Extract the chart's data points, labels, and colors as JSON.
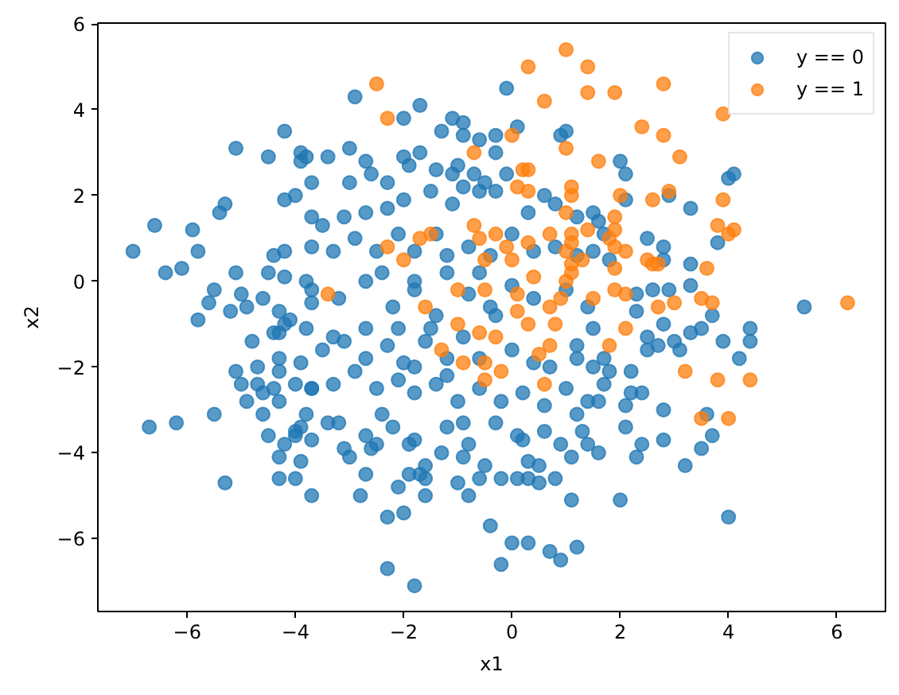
{
  "chart_data": {
    "type": "scatter",
    "xlabel": "x1",
    "ylabel": "x2",
    "xlim": [
      -7.65,
      6.9
    ],
    "ylim": [
      -7.7,
      6.02
    ],
    "xticks": [
      {
        "value": -6,
        "label": "−6"
      },
      {
        "value": -4,
        "label": "−4"
      },
      {
        "value": -2,
        "label": "−2"
      },
      0,
      2,
      4,
      6
    ],
    "yticks": [
      {
        "value": -6,
        "label": "−6"
      },
      {
        "value": -4,
        "label": "−4"
      },
      {
        "value": -2,
        "label": "−2"
      },
      0,
      2,
      4,
      6
    ],
    "grid": false,
    "legend": "top right",
    "marker": "circle",
    "series": [
      {
        "name": "y == 0",
        "color": "#1f77b4",
        "x": [
          -7.0,
          -6.6,
          -6.4,
          -6.1,
          -5.9,
          -5.8,
          -5.1,
          -5.4,
          -5.3,
          -4.5,
          -4.2,
          -3.9,
          -3.8,
          -3.9,
          -4.2,
          -4.0,
          -3.7,
          -3.7,
          -5.5,
          -5.6,
          -5.8,
          -5.1,
          -5.0,
          -5.2,
          -4.9,
          -4.4,
          -4.5,
          -4.2,
          -4.6,
          -4.2,
          -4.3,
          -4.1,
          -3.8,
          -3.7,
          -6.7,
          -6.2,
          -5.5,
          -5.3,
          -4.8,
          -5.1,
          -5.0,
          -4.7,
          -4.9,
          -4.7,
          -4.6,
          -4.6,
          -4.5,
          -4.3,
          -4.3,
          -4.0,
          -3.9,
          -4.2,
          -4.0,
          -4.0,
          -3.9,
          -3.8,
          -3.7,
          -3.7,
          -4.3,
          -4.3,
          -4.4,
          -4.3,
          -3.9,
          -4.0,
          -3.7,
          -4.4,
          -4.3,
          -4.2,
          -3.8,
          -2.3,
          -1.8,
          -2.3,
          -2.0,
          -1.6,
          -2.8,
          -2.1,
          -1.9,
          -1.7,
          -1.6,
          -1.0,
          -0.8,
          -0.5,
          -0.6,
          -0.4,
          -0.2,
          0.0,
          0.3,
          0.7,
          0.9,
          1.2,
          1.1,
          -0.2,
          0.1,
          0.3,
          0.5,
          0.8,
          0.3,
          0.5,
          0.9,
          1.4,
          1.1,
          -3.4,
          -3.1,
          -3.0,
          -2.7,
          -2.6,
          -2.5,
          -1.9,
          -1.6,
          -1.3,
          -0.9,
          -0.8,
          0.1,
          1.3,
          1.2,
          2.0,
          4.0,
          3.2,
          3.5,
          3.7,
          3.6,
          2.3,
          2.4,
          2.8,
          2.8,
          2.1,
          2.1,
          2.2,
          2.2,
          2.4,
          1.7,
          1.6,
          1.6,
          4.2,
          3.9,
          4.4,
          4.4,
          3.1,
          3.0,
          2.7,
          2.5,
          2.5,
          2.8,
          3.3,
          3.5,
          1.5,
          1.7,
          1.8,
          2.0,
          2.1,
          2.1,
          2.9,
          3.3,
          4.0,
          4.1,
          3.8,
          2.5,
          2.8,
          2.8,
          3.3,
          3.3,
          2.9,
          2.6,
          2.3,
          2.3,
          3.7,
          5.4,
          1.6,
          1.7,
          1.8,
          -2.9,
          -2.0,
          -1.7,
          -0.1,
          -1.3,
          -1.1,
          -0.9,
          -0.9,
          -2.0,
          -1.9,
          -1.7,
          -3.0,
          -3.4,
          -0.6,
          -0.3,
          -0.3,
          0.1,
          0.9,
          1.0,
          -1.4,
          -1.1,
          -1.0,
          -3.0,
          -2.7,
          -2.6,
          -2.3,
          -0.1,
          -0.3,
          -0.5,
          -0.7,
          0.3,
          0.6,
          0.8,
          1.2,
          1.5,
          -2.0,
          -2.3,
          -2.7,
          -3.1,
          -3.5,
          -1.5,
          -1.1,
          -0.9,
          -0.6,
          -3.7,
          -3.3,
          -2.9,
          -2.5,
          -2.1,
          -1.8,
          -1.4,
          -1.2,
          -0.8,
          -0.4,
          0.0,
          0.4,
          0.8,
          1.2,
          1.5,
          -3.7,
          -3.2,
          -2.7,
          -2.2,
          -1.8,
          -1.4,
          -0.8,
          -0.4,
          0.4,
          1.0,
          1.4,
          -3.7,
          -3.3,
          -2.9,
          -2.5,
          -2.1,
          -1.8,
          -1.4,
          -1.0,
          -0.6,
          -0.2,
          0.2,
          0.6,
          1.0,
          1.4,
          -3.5,
          -3.1,
          -2.7,
          -2.3,
          -2.0,
          -1.6,
          -1.2,
          0.0,
          0.4,
          1.2,
          1.5,
          -3.2,
          -2.7,
          -2.2,
          -1.8,
          -1.2,
          -0.3,
          0.2,
          0.6,
          -2.4,
          -1.8,
          -1.2,
          -0.6,
          0.0,
          -2.1,
          -1.5,
          -0.9,
          -0.3,
          -2.7,
          -3.3,
          -1.8,
          -1.2,
          -0.6,
          -2.4,
          -0.9,
          0.7,
          1.2
        ],
        "values": [
          0.7,
          1.3,
          0.2,
          0.3,
          1.2,
          0.7,
          3.1,
          1.6,
          1.8,
          2.9,
          3.5,
          3.0,
          2.9,
          2.8,
          1.9,
          2.0,
          2.3,
          1.5,
          -0.2,
          -0.5,
          -0.9,
          0.2,
          -0.3,
          -0.7,
          -0.6,
          0.6,
          0.2,
          0.1,
          -0.4,
          0.7,
          -0.7,
          -0.9,
          0.0,
          -0.5,
          -3.4,
          -3.3,
          -3.1,
          -4.7,
          -1.4,
          -2.1,
          -2.4,
          -2.0,
          -2.8,
          -2.4,
          -2.6,
          -3.1,
          -3.6,
          -4.1,
          -4.6,
          -4.6,
          -4.2,
          -3.8,
          -3.6,
          -3.5,
          -3.4,
          -3.1,
          -3.7,
          -5.0,
          -1.8,
          -2.1,
          -2.5,
          -2.8,
          -1.9,
          -2.4,
          -2.5,
          -1.2,
          -1.2,
          -1.0,
          -1.1,
          -6.7,
          -7.1,
          -5.5,
          -5.4,
          -5.0,
          -5.0,
          -4.8,
          -4.5,
          -4.5,
          -4.6,
          -4.7,
          -5.0,
          -4.3,
          -4.6,
          -5.7,
          -6.6,
          -6.1,
          -6.1,
          -6.3,
          -6.5,
          -6.2,
          -5.1,
          -4.6,
          -4.6,
          -4.6,
          -4.7,
          -4.6,
          -4.2,
          -4.3,
          -3.8,
          -3.8,
          -4.1,
          -3.3,
          -3.9,
          -4.1,
          -4.5,
          -3.9,
          -3.8,
          -3.8,
          -4.3,
          -4.0,
          -4.1,
          -3.8,
          -3.6,
          -3.5,
          -3.1,
          -5.1,
          -5.5,
          -4.3,
          -3.9,
          -3.6,
          -3.1,
          -4.1,
          -3.8,
          -3.7,
          -3.0,
          -3.4,
          -2.9,
          -2.6,
          -2.1,
          -2.6,
          -2.4,
          -2.8,
          -4.0,
          -1.8,
          -1.4,
          -1.4,
          -1.1,
          -1.6,
          -1.4,
          -1.5,
          -1.6,
          -1.3,
          -1.0,
          -1.2,
          -1.1,
          -1.1,
          -1.8,
          -2.1,
          2.8,
          2.5,
          1.9,
          2.0,
          1.7,
          2.4,
          2.5,
          0.9,
          1.0,
          0.8,
          0.5,
          0.4,
          -0.1,
          -0.2,
          -0.2,
          -0.3,
          -0.7,
          -0.8,
          -0.6,
          1.4,
          1.1,
          0.5,
          4.3,
          3.8,
          4.1,
          4.5,
          3.5,
          3.8,
          3.7,
          3.4,
          2.9,
          2.7,
          3.0,
          3.1,
          2.9,
          3.3,
          3.4,
          3.0,
          3.6,
          3.4,
          3.5,
          2.6,
          2.5,
          2.7,
          2.3,
          2.8,
          2.5,
          2.3,
          2.5,
          2.1,
          2.3,
          2.5,
          1.6,
          2.0,
          1.8,
          1.5,
          1.6,
          1.9,
          1.7,
          1.6,
          1.5,
          1.3,
          2.1,
          1.8,
          2.2,
          2.1,
          0.8,
          0.7,
          1.0,
          0.7,
          1.1,
          0.7,
          1.1,
          0.6,
          0.8,
          0.6,
          1.1,
          0.7,
          0.8,
          0.6,
          0.7,
          -0.2,
          -0.4,
          0.0,
          -0.6,
          -0.2,
          -0.8,
          -0.3,
          -0.6,
          -0.4,
          -0.2,
          -0.6,
          -2.5,
          -2.4,
          -2.1,
          -2.5,
          -2.3,
          -2.6,
          -2.4,
          -2.8,
          -2.5,
          -2.8,
          -2.6,
          -2.9,
          -2.5,
          -2.8,
          -1.6,
          -1.4,
          -1.8,
          -1.5,
          -1.9,
          -1.4,
          -1.8,
          -1.6,
          -1.9,
          -1.5,
          -2.0,
          -3.3,
          -3.6,
          -3.4,
          -3.7,
          -3.4,
          -3.3,
          -3.7,
          -3.5,
          0.2,
          0.0,
          0.2,
          0.2,
          -0.1,
          -1.1,
          -1.1,
          -1.3,
          -0.8,
          -1.1,
          -1.3,
          -2.0,
          -2.2,
          -1.8,
          -3.1,
          -3.3,
          -2.0,
          -1.8
        ]
      },
      {
        "name": "y == 1",
        "color": "#ff7f0e",
        "x": [
          -2.5,
          -2.3,
          1.0,
          0.3,
          1.4,
          0.6,
          1.4,
          0.0,
          1.0,
          -0.7,
          1.6,
          0.2,
          0.3,
          0.1,
          0.3,
          1.1,
          1.1,
          1.0,
          -0.7,
          -0.6,
          -0.3,
          -1.7,
          -1.5,
          -2.3,
          -2.0,
          -0.1,
          0.3,
          0.7,
          1.1,
          1.1,
          1.0,
          1.4,
          -0.5,
          0.0,
          0.4,
          1.1,
          1.1,
          1.0,
          1.3,
          -3.4,
          -1.6,
          -1.0,
          -0.5,
          0.1,
          0.1,
          0.7,
          0.9,
          0.3,
          0.8,
          -1.0,
          1.9,
          2.8,
          2.4,
          2.8,
          3.1,
          3.9,
          2.9,
          2.6,
          3.9,
          2.0,
          1.9,
          1.9,
          3.8,
          4.0,
          4.1,
          1.8,
          1.9,
          2.1,
          2.5,
          2.6,
          2.7,
          3.6,
          1.9,
          1.9,
          2.1,
          1.5,
          2.7,
          3.0,
          3.5,
          3.7,
          6.2,
          2.1,
          -0.6,
          -0.3,
          0.7,
          0.5,
          -1.3,
          -0.9,
          -0.5,
          -0.2,
          -0.5,
          0.6,
          1.8,
          3.2,
          3.8,
          4.4,
          3.5,
          4.0
        ],
        "values": [
          4.6,
          3.8,
          5.4,
          5.0,
          5.0,
          4.2,
          4.4,
          3.4,
          3.1,
          3.0,
          2.8,
          2.6,
          2.6,
          2.2,
          2.1,
          2.2,
          2.0,
          1.6,
          1.3,
          1.0,
          1.1,
          1.0,
          1.1,
          0.8,
          0.5,
          0.8,
          0.9,
          1.1,
          1.1,
          0.9,
          0.7,
          1.2,
          0.5,
          0.5,
          0.1,
          0.4,
          0.2,
          0.0,
          0.5,
          -0.3,
          -0.6,
          -0.2,
          -0.2,
          -0.3,
          -0.7,
          -0.6,
          -0.4,
          -1.0,
          -1.0,
          -1.0,
          4.4,
          4.6,
          3.6,
          3.4,
          2.9,
          3.9,
          2.1,
          1.9,
          1.9,
          2.0,
          1.5,
          1.2,
          1.3,
          1.1,
          1.2,
          1.0,
          0.8,
          0.7,
          0.5,
          0.4,
          0.4,
          0.3,
          0.3,
          -0.2,
          -0.3,
          -0.4,
          -0.6,
          -0.5,
          -0.4,
          -0.5,
          -0.5,
          -1.1,
          -1.2,
          -1.3,
          -1.5,
          -1.7,
          -1.6,
          -1.9,
          -1.9,
          -2.1,
          -2.3,
          -2.4,
          -1.5,
          -2.1,
          -2.3,
          -2.3,
          -3.2,
          -3.2
        ]
      }
    ]
  }
}
